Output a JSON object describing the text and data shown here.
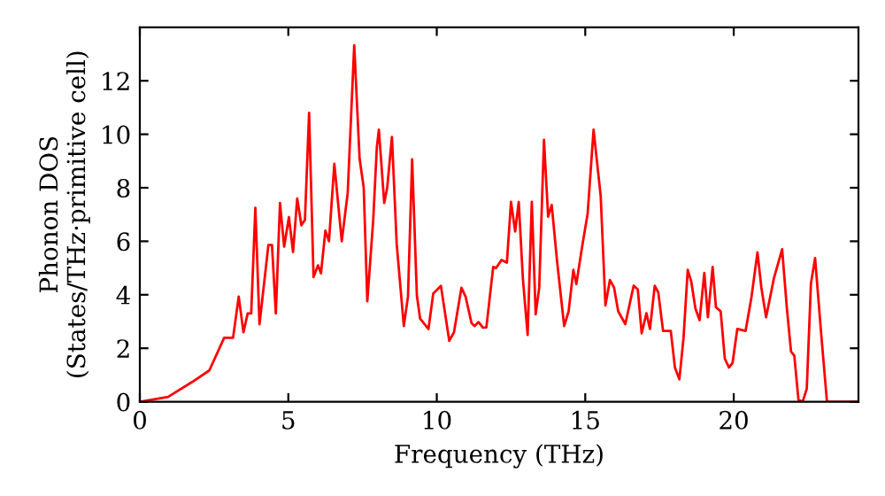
{
  "chart_data": {
    "type": "line",
    "xlabel": "Frequency (THz)",
    "ylabel": "Phonon DOS\n(States/THz·primitive cell)",
    "xlim": [
      0,
      24.2
    ],
    "ylim": [
      0,
      14
    ],
    "xticks": [
      0,
      5,
      10,
      15,
      20
    ],
    "yticks": [
      0,
      2,
      4,
      6,
      8,
      10,
      12
    ],
    "grid": false,
    "legend": false,
    "marker": "none",
    "line_style": "solid",
    "series": [
      {
        "color": "#ff0000",
        "x": [
          0,
          0.95,
          1.75,
          2.34,
          2.84,
          3.14,
          3.33,
          3.49,
          3.63,
          3.75,
          3.89,
          4.03,
          4.33,
          4.45,
          4.58,
          4.72,
          4.86,
          5.02,
          5.16,
          5.3,
          5.44,
          5.56,
          5.7,
          5.85,
          6.0,
          6.1,
          6.25,
          6.37,
          6.55,
          6.8,
          7.0,
          7.22,
          7.4,
          7.54,
          7.66,
          7.86,
          7.98,
          8.05,
          8.23,
          8.33,
          8.49,
          8.65,
          8.89,
          9.03,
          9.17,
          9.33,
          9.44,
          9.72,
          9.88,
          10.14,
          10.42,
          10.58,
          10.83,
          10.97,
          11.17,
          11.27,
          11.41,
          11.55,
          11.67,
          11.9,
          12.0,
          12.18,
          12.36,
          12.5,
          12.64,
          12.76,
          12.9,
          13.06,
          13.2,
          13.33,
          13.45,
          13.61,
          13.75,
          13.87,
          14.05,
          14.29,
          14.44,
          14.6,
          14.7,
          14.88,
          15.08,
          15.28,
          15.52,
          15.68,
          15.83,
          15.97,
          16.11,
          16.35,
          16.63,
          16.77,
          16.9,
          17.06,
          17.18,
          17.34,
          17.46,
          17.62,
          17.88,
          18.02,
          18.17,
          18.31,
          18.45,
          18.57,
          18.71,
          18.85,
          19.01,
          19.13,
          19.29,
          19.4,
          19.56,
          19.7,
          19.84,
          19.96,
          20.12,
          20.4,
          20.6,
          20.8,
          20.93,
          21.09,
          21.35,
          21.63,
          21.79,
          21.93,
          22.04,
          22.18,
          22.32,
          22.46,
          22.6,
          22.74,
          22.94,
          23.14,
          24.2
        ],
        "values": [
          0,
          0.18,
          0.73,
          1.17,
          2.39,
          2.39,
          3.93,
          2.6,
          3.3,
          3.3,
          7.25,
          2.9,
          5.86,
          5.86,
          3.3,
          7.43,
          5.8,
          6.9,
          5.6,
          7.6,
          6.6,
          6.8,
          10.8,
          4.66,
          5.1,
          4.8,
          6.4,
          6.0,
          8.9,
          6.0,
          7.8,
          13.33,
          9.1,
          8.0,
          3.76,
          6.8,
          9.5,
          10.17,
          7.43,
          8.0,
          9.9,
          5.9,
          2.83,
          3.93,
          9.06,
          3.97,
          3.1,
          2.72,
          4.04,
          4.33,
          2.28,
          2.6,
          4.26,
          3.93,
          2.94,
          2.83,
          2.98,
          2.77,
          2.78,
          5.04,
          5.0,
          5.3,
          5.2,
          7.47,
          6.37,
          7.47,
          4.6,
          2.5,
          7.47,
          3.27,
          4.27,
          9.79,
          6.92,
          7.36,
          5.26,
          2.83,
          3.38,
          4.93,
          4.4,
          5.7,
          7.03,
          10.17,
          7.69,
          3.6,
          4.55,
          4.27,
          3.38,
          2.9,
          4.34,
          4.2,
          2.56,
          3.31,
          2.72,
          4.34,
          4.09,
          2.65,
          2.65,
          1.28,
          0.84,
          2.39,
          4.93,
          4.49,
          3.49,
          3.05,
          4.82,
          3.16,
          5.04,
          3.54,
          3.38,
          1.61,
          1.28,
          1.45,
          2.72,
          2.65,
          3.93,
          5.59,
          4.27,
          3.16,
          4.6,
          5.7,
          3.49,
          1.88,
          1.72,
          0.07,
          0,
          0.49,
          4.42,
          5.37,
          2.61,
          0,
          0
        ]
      }
    ]
  }
}
